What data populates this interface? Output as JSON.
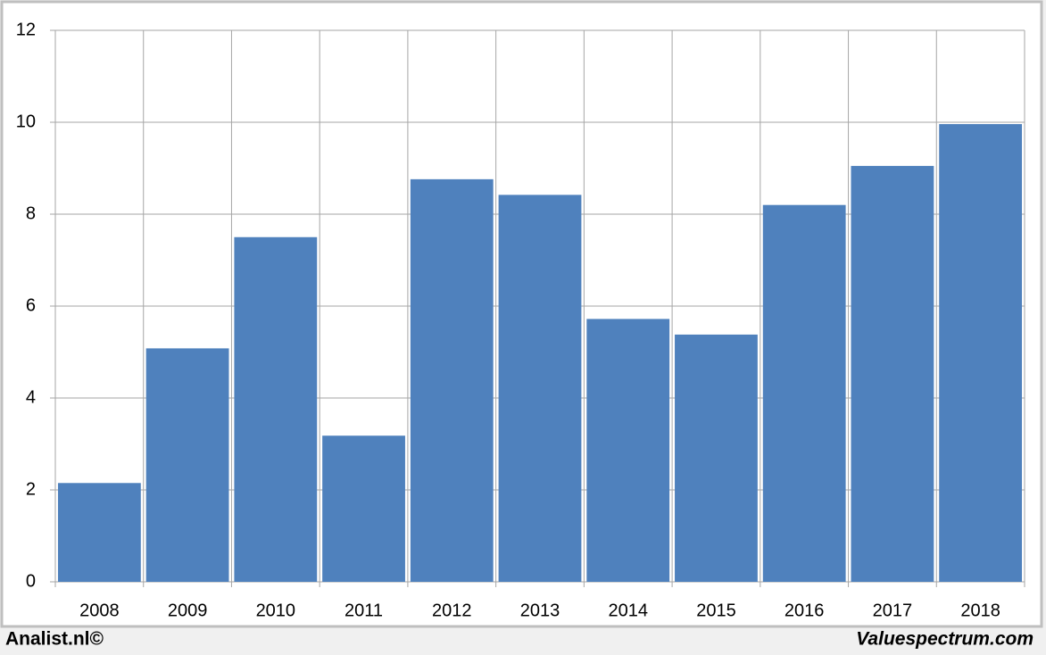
{
  "chart_data": {
    "type": "bar",
    "categories": [
      "2008",
      "2009",
      "2010",
      "2011",
      "2012",
      "2013",
      "2014",
      "2015",
      "2016",
      "2017",
      "2018"
    ],
    "values": [
      2.15,
      5.08,
      7.5,
      3.18,
      8.76,
      8.42,
      5.72,
      5.38,
      8.2,
      9.05,
      9.96
    ],
    "color": "#4f81bd",
    "ylim": [
      0,
      12
    ],
    "yticks": [
      0,
      2,
      4,
      6,
      8,
      10,
      12
    ],
    "grid": true,
    "source_left": "Analist.nl©",
    "source_right": "Valuespectrum.com"
  }
}
